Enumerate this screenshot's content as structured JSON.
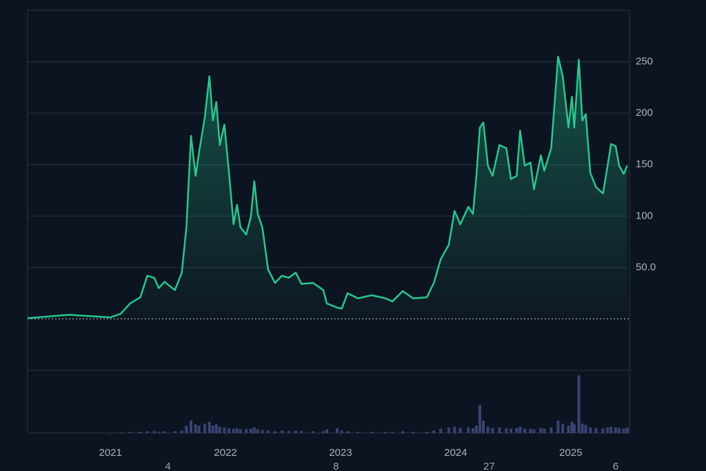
{
  "chart_data": {
    "type": "area",
    "x": [
      2020.28,
      2020.64,
      2021.0,
      2021.09,
      2021.17,
      2021.26,
      2021.32,
      2021.38,
      2021.42,
      2021.47,
      2021.56,
      2021.62,
      2021.66,
      2021.7,
      2021.74,
      2021.77,
      2021.82,
      2021.86,
      2021.89,
      2021.92,
      2021.95,
      2021.99,
      2022.03,
      2022.07,
      2022.1,
      2022.13,
      2022.18,
      2022.22,
      2022.25,
      2022.28,
      2022.32,
      2022.37,
      2022.43,
      2022.49,
      2022.55,
      2022.61,
      2022.66,
      2022.76,
      2022.85,
      2022.88,
      2022.97,
      2023.01,
      2023.06,
      2023.15,
      2023.27,
      2023.39,
      2023.45,
      2023.54,
      2023.63,
      2023.75,
      2023.81,
      2023.87,
      2023.94,
      2023.99,
      2024.04,
      2024.11,
      2024.15,
      2024.18,
      2024.21,
      2024.24,
      2024.28,
      2024.32,
      2024.38,
      2024.44,
      2024.48,
      2024.53,
      2024.56,
      2024.6,
      2024.65,
      2024.68,
      2024.74,
      2024.77,
      2024.83,
      2024.89,
      2024.93,
      2024.98,
      2025.01,
      2025.03,
      2025.07,
      2025.1,
      2025.13,
      2025.17,
      2025.22,
      2025.28,
      2025.32,
      2025.35,
      2025.39,
      2025.42,
      2025.46,
      2025.49
    ],
    "values": [
      0.7,
      4,
      1.5,
      5,
      15,
      21,
      42,
      40,
      30,
      36,
      28,
      45,
      89,
      178,
      139,
      162,
      196,
      236,
      193,
      211,
      169,
      189,
      142,
      92,
      111,
      89,
      82,
      99,
      134,
      102,
      89,
      48,
      35,
      42,
      40,
      45,
      34,
      35,
      28,
      15,
      11,
      10,
      25,
      20,
      23,
      20,
      17,
      27,
      20,
      21,
      35,
      58,
      72,
      105,
      92,
      109,
      102,
      139,
      186,
      191,
      149,
      139,
      169,
      166,
      136,
      139,
      183,
      149,
      152,
      126,
      159,
      144,
      166,
      255,
      236,
      186,
      216,
      186,
      252,
      193,
      199,
      142,
      128,
      122,
      149,
      170,
      168,
      149,
      141,
      149
    ],
    "volume": [
      0,
      0,
      0,
      1,
      2,
      2,
      3,
      3,
      2,
      3,
      3,
      4,
      12,
      20,
      14,
      12,
      15,
      18,
      12,
      14,
      10,
      9,
      8,
      7,
      8,
      6,
      6,
      7,
      9,
      6,
      5,
      4,
      3,
      4,
      3,
      4,
      3,
      3,
      3,
      6,
      8,
      4,
      3,
      2,
      2,
      2,
      2,
      3,
      2,
      2,
      4,
      7,
      9,
      10,
      8,
      9,
      8,
      12,
      45,
      20,
      10,
      8,
      9,
      8,
      7,
      8,
      10,
      7,
      7,
      6,
      8,
      7,
      9,
      20,
      15,
      12,
      18,
      14,
      92,
      15,
      13,
      9,
      8,
      7,
      9,
      10,
      9,
      8,
      7,
      9
    ],
    "color": "#26c98f",
    "volume_color": "#3a4373",
    "xlim": [
      2020.28,
      2025.51
    ],
    "xticks": [
      2021,
      2022,
      2023,
      2024,
      2025
    ],
    "ylim": [
      -50,
      300
    ],
    "yticks": [
      {
        "value": 50,
        "label": "50.0"
      },
      100,
      150,
      200,
      250
    ],
    "volume_ylim": [
      0,
      100
    ],
    "grid": true,
    "annotations": [
      {
        "x": 2021.5,
        "text": "4"
      },
      {
        "x": 2022.96,
        "text": "8"
      },
      {
        "x": 2024.29,
        "text": "27"
      },
      {
        "x": 2025.39,
        "text": "6"
      }
    ]
  }
}
